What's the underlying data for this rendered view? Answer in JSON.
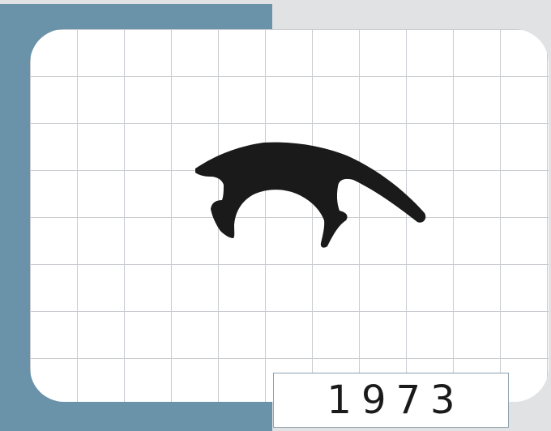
{
  "profile": {
    "icon": "seal-profile-silhouette",
    "fill_color": "#1a1a1a"
  },
  "colors": {
    "background": "#e1e2e4",
    "accent": "#6a92a8",
    "grid_line": "#c9cdd1",
    "card": "#ffffff"
  },
  "label": {
    "code": "1973"
  }
}
